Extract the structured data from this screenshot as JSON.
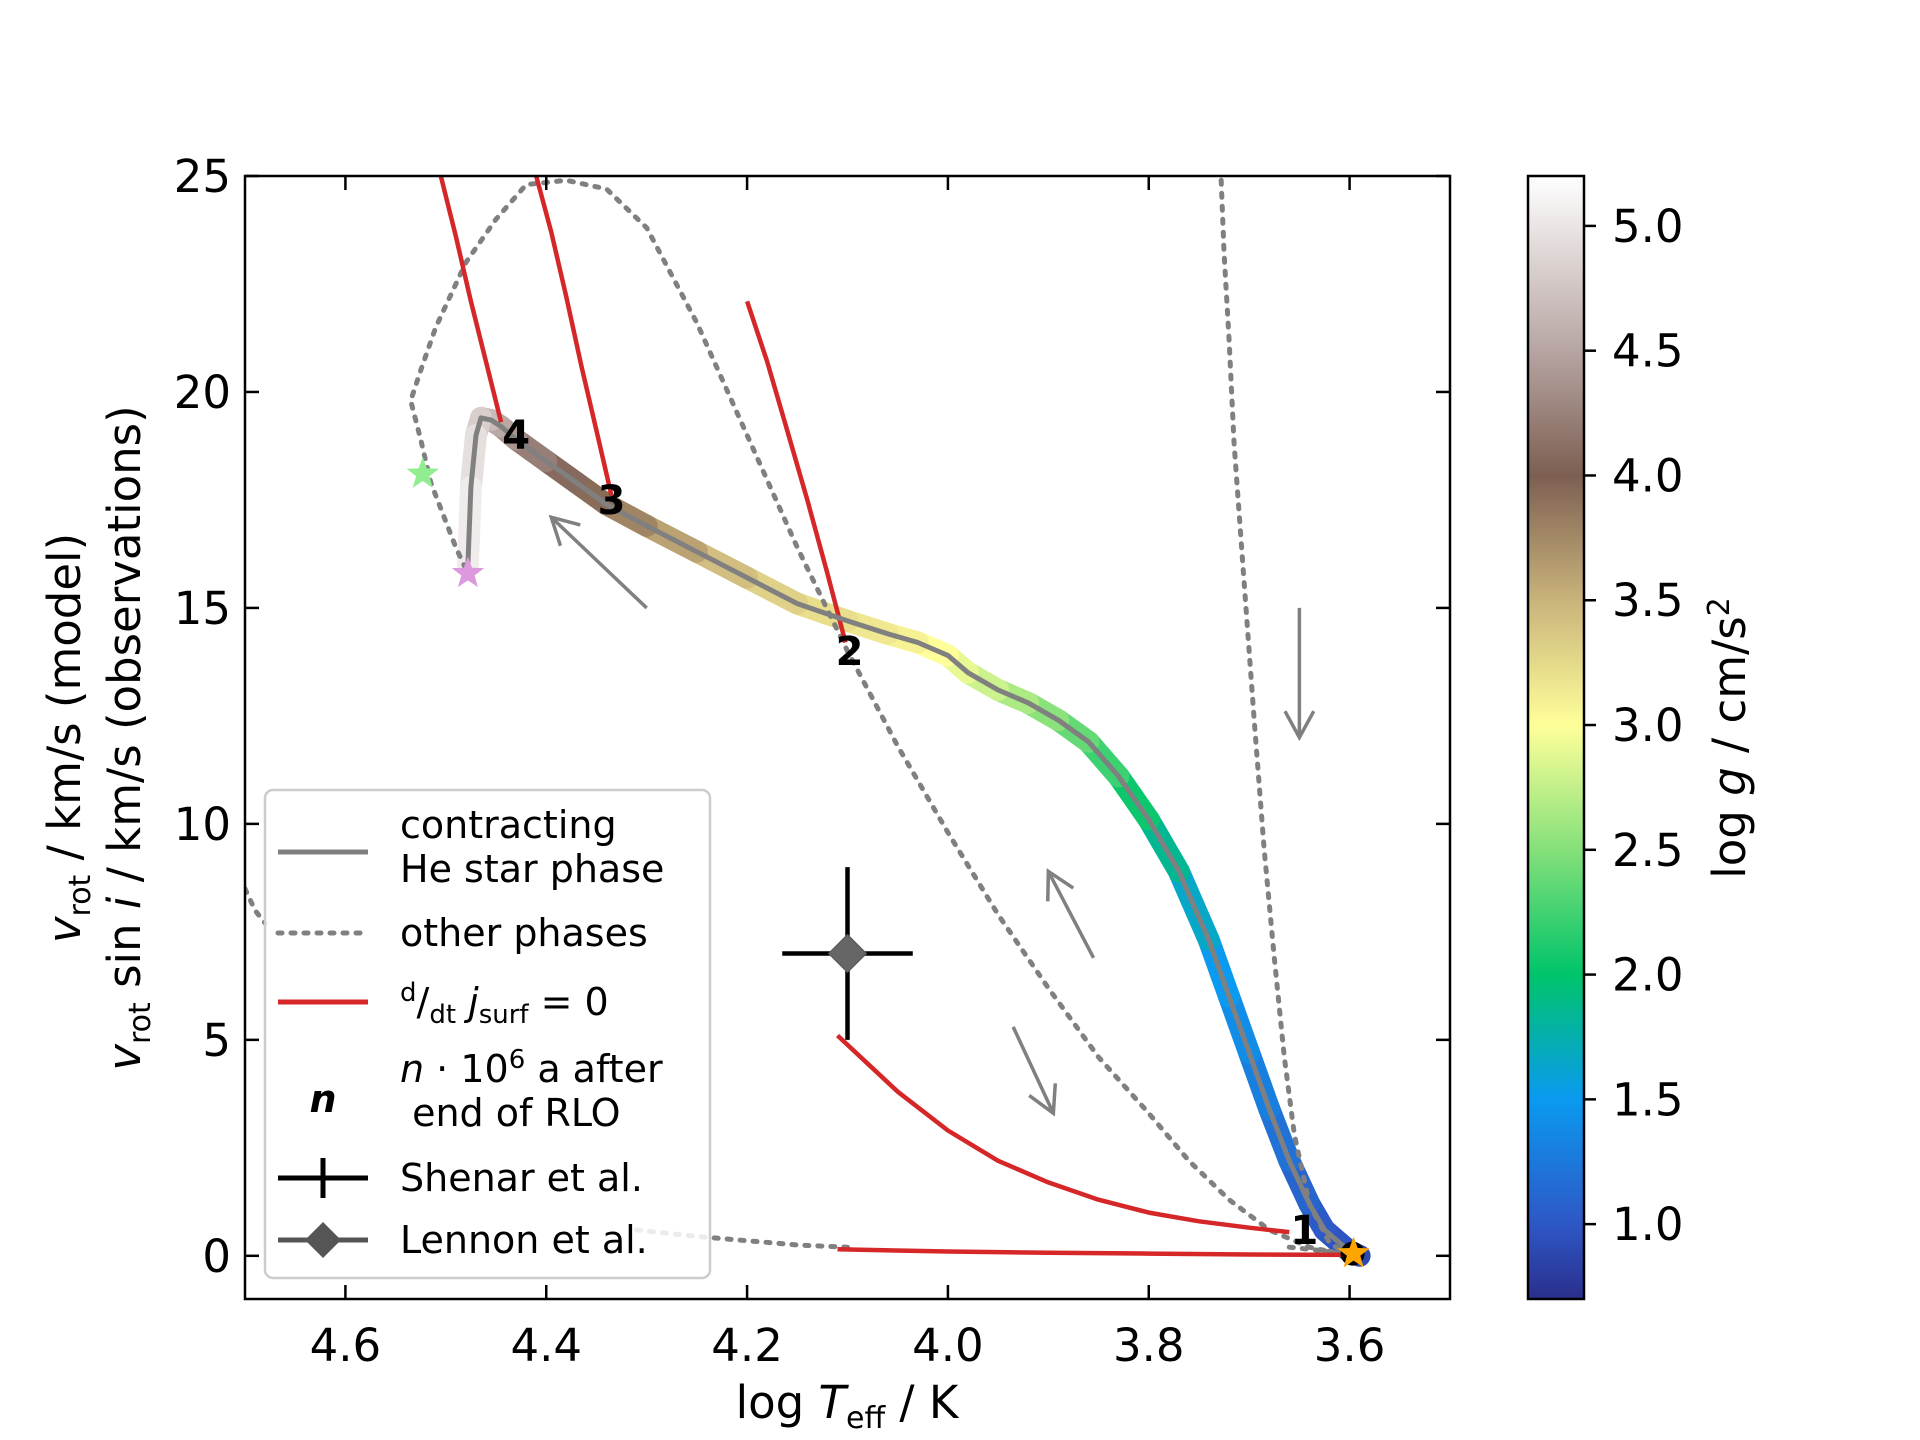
{
  "chart_data": {
    "type": "line",
    "xlabel": "log T_eff / K",
    "ylabel_line1": "v_rot / km/s (model)",
    "ylabel_line2": "v_rot sin i / km/s (observations)",
    "xlim": [
      4.7,
      3.5
    ],
    "ylim": [
      -1,
      25
    ],
    "xticks": [
      4.6,
      4.4,
      4.2,
      4.0,
      3.8,
      3.6
    ],
    "xtick_labels": [
      "4.6",
      "4.4",
      "4.2",
      "4.0",
      "3.8",
      "3.6"
    ],
    "yticks": [
      0,
      5,
      10,
      15,
      20,
      25
    ],
    "ytick_labels": [
      "0",
      "5",
      "10",
      "15",
      "20",
      "25"
    ],
    "colorbar": {
      "label": "log g / cm/s²",
      "range": [
        0.7,
        5.2
      ],
      "ticks": [
        1.0,
        1.5,
        2.0,
        2.5,
        3.0,
        3.5,
        4.0,
        4.5,
        5.0
      ],
      "tick_labels": [
        "1.0",
        "1.5",
        "2.0",
        "2.5",
        "3.0",
        "3.5",
        "4.0",
        "4.5",
        "5.0"
      ],
      "stops": [
        {
          "v": 0.7,
          "color": "#2a2f8c"
        },
        {
          "v": 1.0,
          "color": "#2e57c6"
        },
        {
          "v": 1.5,
          "color": "#0a9af0"
        },
        {
          "v": 2.0,
          "color": "#00c46a"
        },
        {
          "v": 2.5,
          "color": "#85e07a"
        },
        {
          "v": 3.0,
          "color": "#ffff99"
        },
        {
          "v": 3.5,
          "color": "#c9b37b"
        },
        {
          "v": 4.0,
          "color": "#7d5f52"
        },
        {
          "v": 4.5,
          "color": "#b7a5a2"
        },
        {
          "v": 5.2,
          "color": "#ffffff"
        }
      ]
    },
    "series": [
      {
        "name": "contracting He star phase",
        "style": "solid",
        "color": "#808080",
        "colored_by": "log g",
        "x": [
          3.59,
          3.6,
          3.61,
          3.625,
          3.64,
          3.66,
          3.68,
          3.7,
          3.72,
          3.74,
          3.77,
          3.8,
          3.83,
          3.86,
          3.89,
          3.92,
          3.95,
          3.98,
          4.0,
          4.03,
          4.06,
          4.1,
          4.15,
          4.2,
          4.25,
          4.3,
          4.34,
          4.37,
          4.4,
          4.43,
          4.445,
          4.455,
          4.465,
          4.47,
          4.475,
          4.478
        ],
        "y": [
          0.0,
          0.1,
          0.3,
          0.6,
          1.2,
          2.2,
          3.4,
          4.7,
          6.0,
          7.3,
          8.9,
          10.1,
          11.1,
          11.9,
          12.4,
          12.8,
          13.1,
          13.5,
          13.9,
          14.2,
          14.4,
          14.7,
          15.1,
          15.7,
          16.3,
          16.9,
          17.4,
          17.9,
          18.4,
          18.9,
          19.2,
          19.35,
          19.4,
          19.0,
          17.8,
          16.0
        ],
        "logg": [
          0.9,
          0.9,
          0.95,
          1.0,
          1.05,
          1.15,
          1.25,
          1.35,
          1.45,
          1.55,
          1.75,
          1.95,
          2.15,
          2.3,
          2.45,
          2.6,
          2.72,
          2.85,
          2.95,
          3.05,
          3.12,
          3.18,
          3.25,
          3.35,
          3.5,
          3.7,
          3.85,
          4.0,
          4.15,
          4.3,
          4.45,
          4.6,
          4.75,
          4.9,
          5.0,
          5.1
        ]
      },
      {
        "name": "other phases",
        "style": "dotted",
        "color": "#808080",
        "segments": [
          {
            "x": [
              4.7,
              4.69,
              4.68
            ],
            "y": [
              8.5,
              8.0,
              7.7
            ]
          },
          {
            "x": [
              4.31,
              4.25,
              4.2,
              4.15,
              4.1
            ],
            "y": [
              0.6,
              0.45,
              0.35,
              0.25,
              0.2
            ]
          },
          {
            "x": [
              3.66,
              3.64,
              3.62,
              3.6
            ],
            "y": [
              0.2,
              0.15,
              0.1,
              0.05
            ]
          },
          {
            "x": [
              3.6,
              3.64,
              3.68,
              3.72,
              3.76,
              3.8,
              3.85,
              3.9,
              3.95,
              4.0,
              4.05,
              4.1,
              4.15,
              4.2,
              4.25,
              4.3,
              4.34,
              4.38,
              4.42,
              4.45,
              4.48,
              4.51,
              4.525,
              4.535,
              4.525,
              4.515,
              4.5,
              4.49,
              4.48
            ],
            "y": [
              0.0,
              0.2,
              0.6,
              1.3,
              2.2,
              3.3,
              4.6,
              6.2,
              7.9,
              9.8,
              11.8,
              14.0,
              16.4,
              19.0,
              21.6,
              23.8,
              24.7,
              24.9,
              24.8,
              24.0,
              23.0,
              21.5,
              20.5,
              19.8,
              18.9,
              17.9,
              17.0,
              16.4,
              15.9
            ]
          },
          {
            "x": [
              3.6,
              3.62,
              3.64,
              3.655,
              3.665,
              3.675,
              3.685,
              3.695,
              3.705,
              3.715,
              3.72,
              3.725,
              3.728
            ],
            "y": [
              0.0,
              0.3,
              1.2,
              2.8,
              4.6,
              6.9,
              9.4,
              12.4,
              15.6,
              18.8,
              21.2,
              23.2,
              25.0
            ]
          }
        ]
      },
      {
        "name": "d/dt j_surf = 0",
        "style": "solid",
        "color": "#d62728",
        "segments": [
          {
            "x": [
              4.445,
              4.46,
              4.475,
              4.49,
              4.505
            ],
            "y": [
              19.3,
              20.7,
              22.1,
              23.6,
              25.0
            ]
          },
          {
            "x": [
              4.335,
              4.35,
              4.365,
              4.38,
              4.395,
              4.41
            ],
            "y": [
              17.6,
              19.1,
              20.6,
              22.2,
              23.7,
              25.0
            ]
          },
          {
            "x": [
              4.102,
              4.12,
              4.14,
              4.16,
              4.18,
              4.2
            ],
            "y": [
              14.2,
              15.8,
              17.5,
              19.1,
              20.7,
              22.1
            ]
          },
          {
            "x": [
              4.11,
              4.05,
              4.0,
              3.95,
              3.9,
              3.85,
              3.8,
              3.75,
              3.7,
              3.66
            ],
            "y": [
              5.1,
              3.8,
              2.9,
              2.2,
              1.7,
              1.3,
              1.0,
              0.8,
              0.65,
              0.55
            ]
          },
          {
            "x": [
              4.11,
              4.0,
              3.9,
              3.8,
              3.7,
              3.6
            ],
            "y": [
              0.15,
              0.1,
              0.07,
              0.05,
              0.03,
              0.02
            ]
          }
        ]
      }
    ],
    "time_markers": [
      {
        "label": "1",
        "x": 3.645,
        "y": 0.6
      },
      {
        "label": "2",
        "x": 4.098,
        "y": 14.0
      },
      {
        "label": "3",
        "x": 4.335,
        "y": 17.5
      },
      {
        "label": "4",
        "x": 4.43,
        "y": 19.0
      }
    ],
    "observations": [
      {
        "name": "Shenar et al.",
        "x": 4.1,
        "y": 7.0,
        "xerr": 0.065,
        "yerr": 2.0
      },
      {
        "name": "Lennon et al.",
        "x": 4.1,
        "y": 7.0
      }
    ],
    "stars": [
      {
        "name": "start",
        "x": 3.596,
        "y": 0.05,
        "color": "#ffa500"
      },
      {
        "name": "green",
        "x": 4.523,
        "y": 18.1,
        "color": "#90ee90"
      },
      {
        "name": "violet",
        "x": 4.478,
        "y": 15.8,
        "color": "#dd99dd"
      }
    ],
    "arrows": [
      {
        "x1": 4.3,
        "y1": 15.0,
        "x2": 4.395,
        "y2": 17.1
      },
      {
        "x1": 3.65,
        "y1": 15.0,
        "x2": 3.65,
        "y2": 12.0
      },
      {
        "x1": 3.855,
        "y1": 6.9,
        "x2": 3.9,
        "y2": 8.9
      },
      {
        "x1": 3.935,
        "y1": 5.3,
        "x2": 3.895,
        "y2": 3.3
      }
    ],
    "legend": {
      "placement": "lower-left",
      "entries": [
        {
          "key": "contracting",
          "lines": [
            "contracting",
            "He star phase"
          ]
        },
        {
          "key": "other",
          "lines": [
            "other phases"
          ]
        },
        {
          "key": "djdt",
          "lines": [
            "d/dt j_surf = 0"
          ]
        },
        {
          "key": "n",
          "symbol": "n",
          "lines": [
            "n · 10⁶ a after",
            " end of RLO"
          ]
        },
        {
          "key": "shenar",
          "lines": [
            "Shenar et al."
          ]
        },
        {
          "key": "lennon",
          "lines": [
            "Lennon et al."
          ]
        }
      ]
    }
  }
}
